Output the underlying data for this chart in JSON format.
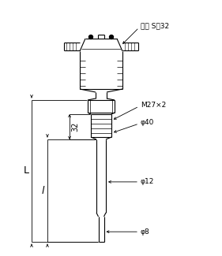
{
  "bg_color": "#ffffff",
  "line_color": "#000000",
  "fig_width": 2.81,
  "fig_height": 3.25,
  "dpi": 100,
  "labels": {
    "bangshou": "板手 S－32",
    "m27": "M27×2",
    "phi40": "φ40",
    "phi12": "φ12",
    "phi8": "φ8",
    "dim32": "32",
    "dimL": "L",
    "diml": "l"
  }
}
